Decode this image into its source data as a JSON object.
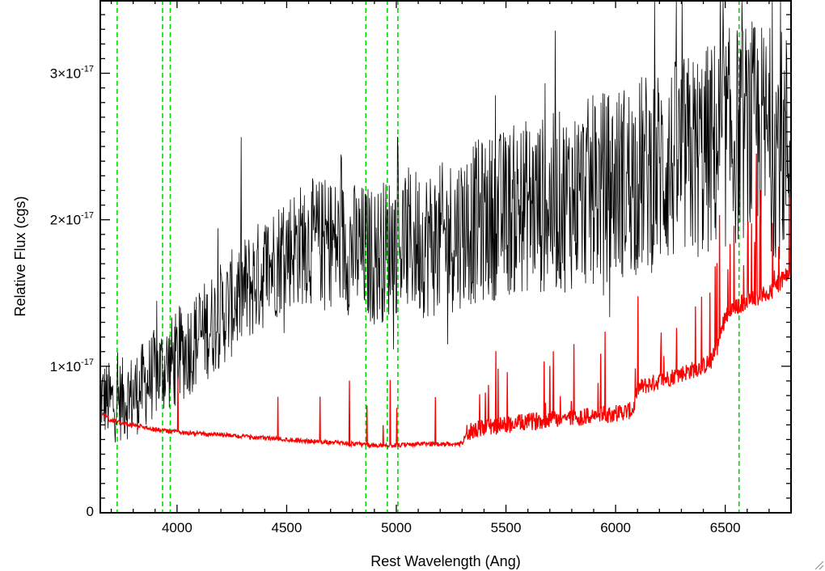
{
  "chart_data": {
    "type": "line",
    "title": "",
    "xlabel": "Rest Wavelength (Ang)",
    "ylabel": "Relative Flux (cgs)",
    "xlim": [
      3650,
      6800
    ],
    "ylim": [
      0,
      3.5e-17
    ],
    "x_ticks": [
      {
        "value": 4000,
        "label": "4000"
      },
      {
        "value": 4500,
        "label": "4500"
      },
      {
        "value": 5000,
        "label": "5000"
      },
      {
        "value": 5500,
        "label": "5500"
      },
      {
        "value": 6000,
        "label": "6000"
      },
      {
        "value": 6500,
        "label": "6500"
      }
    ],
    "y_ticks": [
      {
        "value": 0,
        "label": "0",
        "mant": "",
        "exp": ""
      },
      {
        "value": 1e-17,
        "label": "",
        "mant": "1×10",
        "exp": "-17"
      },
      {
        "value": 2e-17,
        "label": "",
        "mant": "2×10",
        "exp": "-17"
      },
      {
        "value": 3e-17,
        "label": "",
        "mant": "3×10",
        "exp": "-17"
      }
    ],
    "grid": false,
    "colors": {
      "observed": "#000000",
      "model": "#ff0000",
      "lines": "#00dd00"
    },
    "vlines": [
      3727,
      3934,
      3969,
      4861,
      4959,
      5007,
      6563
    ],
    "series": [
      {
        "color": "#000000",
        "noise_amplitude": 4.5e-18,
        "x": [
          3650,
          3700,
          3800,
          3900,
          4000,
          4100,
          4200,
          4300,
          4400,
          4500,
          4600,
          4700,
          4800,
          4900,
          5000,
          5100,
          5200,
          5300,
          5400,
          5500,
          5600,
          5700,
          5800,
          5900,
          6000,
          6100,
          6200,
          6300,
          6400,
          6500,
          6600,
          6700,
          6800
        ],
        "y": [
          8e-18,
          7.5e-18,
          8e-18,
          9.5e-18,
          1.05e-17,
          1.2e-17,
          1.35e-17,
          1.5e-17,
          1.65e-17,
          1.8e-17,
          1.85e-17,
          1.85e-17,
          1.8e-17,
          1.75e-17,
          1.85e-17,
          1.85e-17,
          1.85e-17,
          1.95e-17,
          2e-17,
          2.05e-17,
          2.1e-17,
          2.1e-17,
          2.15e-17,
          2.2e-17,
          2.25e-17,
          2.3e-17,
          2.35e-17,
          2.4e-17,
          2.45e-17,
          2.55e-17,
          2.6e-17,
          2.55e-17,
          2.5e-17
        ]
      },
      {
        "color": "#ff0000",
        "x": [
          3650,
          3700,
          3800,
          3900,
          4000,
          4100,
          4200,
          4300,
          4400,
          4500,
          4600,
          4700,
          4800,
          4900,
          5000,
          5100,
          5200,
          5300,
          5320,
          5400,
          5500,
          5600,
          5700,
          5800,
          5900,
          6000,
          6080,
          6100,
          6200,
          6300,
          6400,
          6450,
          6500,
          6600,
          6700,
          6800
        ],
        "y": [
          6.8e-18,
          6.3e-18,
          6e-18,
          5.7e-18,
          5.5e-18,
          5.4e-18,
          5.3e-18,
          5.2e-18,
          5.1e-18,
          5e-18,
          4.9e-18,
          4.8e-18,
          4.7e-18,
          4.6e-18,
          4.6e-18,
          4.7e-18,
          4.7e-18,
          4.7e-18,
          5.5e-18,
          5.8e-18,
          6e-18,
          6.2e-18,
          6.4e-18,
          6.5e-18,
          6.6e-18,
          6.8e-18,
          7e-18,
          8.5e-18,
          9e-18,
          9.5e-18,
          1e-17,
          1.05e-17,
          1.35e-17,
          1.45e-17,
          1.5e-17,
          1.65e-17
        ]
      }
    ]
  }
}
